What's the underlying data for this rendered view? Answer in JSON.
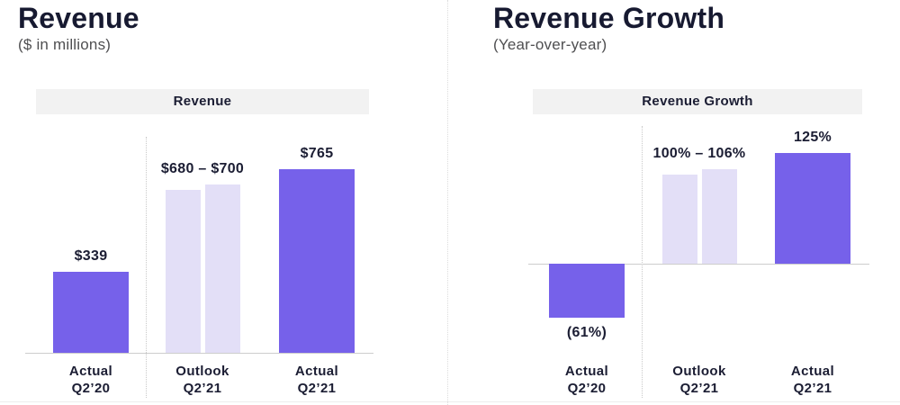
{
  "colors": {
    "bar_solid": "#7661EA",
    "bar_light": "#E3DFF7",
    "text_dark": "#1B1D33",
    "text_gray": "#4F4F51",
    "header_bg": "#F2F2F2",
    "axis_line": "#CDCDCD"
  },
  "chart_data": [
    {
      "type": "bar",
      "title": "Revenue",
      "subtitle": "($ in millions)",
      "panel_header": "Revenue",
      "ylim": [
        0,
        945
      ],
      "grid": false,
      "legend": false,
      "categories": [
        "Actual Q2’20",
        "Outlook Q2’21",
        "Actual Q2’21"
      ],
      "groups": [
        {
          "category_lines": [
            "Actual",
            "Q2’20"
          ],
          "bars": [
            {
              "value": 339,
              "style": "solid"
            }
          ],
          "label": "$339",
          "label_position": "above"
        },
        {
          "category_lines": [
            "Outlook",
            "Q2’21"
          ],
          "bars": [
            {
              "value": 680,
              "style": "light"
            },
            {
              "value": 700,
              "style": "light"
            }
          ],
          "label": "$680 – $700",
          "label_position": "above"
        },
        {
          "category_lines": [
            "Actual",
            "Q2’21"
          ],
          "bars": [
            {
              "value": 765,
              "style": "solid"
            }
          ],
          "label": "$765",
          "label_position": "above"
        }
      ]
    },
    {
      "type": "bar",
      "title": "Revenue Growth",
      "subtitle": "(Year-over-year)",
      "panel_header": "Revenue Growth",
      "ylim": [
        -75,
        155
      ],
      "grid": false,
      "legend": false,
      "categories": [
        "Actual Q2’20",
        "Outlook Q2’21",
        "Actual Q2’21"
      ],
      "groups": [
        {
          "category_lines": [
            "Actual",
            "Q2’20"
          ],
          "bars": [
            {
              "value": -61,
              "style": "solid"
            }
          ],
          "label": "(61%)",
          "label_position": "below"
        },
        {
          "category_lines": [
            "Outlook",
            "Q2’21"
          ],
          "bars": [
            {
              "value": 100,
              "style": "light"
            },
            {
              "value": 106,
              "style": "light"
            }
          ],
          "label": "100% – 106%",
          "label_position": "above"
        },
        {
          "category_lines": [
            "Actual",
            "Q2’21"
          ],
          "bars": [
            {
              "value": 125,
              "style": "solid"
            }
          ],
          "label": "125%",
          "label_position": "above"
        }
      ]
    }
  ]
}
